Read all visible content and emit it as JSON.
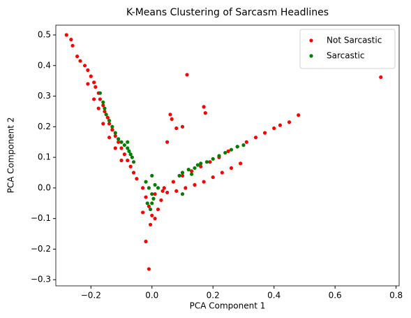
{
  "chart_data": {
    "type": "scatter",
    "title": "K-Means Clustering of Sarcasm Headlines",
    "x_label": "PCA Component 1",
    "y_label": "PCA Component 2",
    "xlim": [
      -0.315,
      0.81
    ],
    "ylim": [
      -0.32,
      0.532
    ],
    "xticks": [
      {
        "value": -0.2,
        "label": "−0.2"
      },
      {
        "value": 0,
        "label": "0.0"
      },
      {
        "value": 0.2,
        "label": "0.2"
      },
      {
        "value": 0.4,
        "label": "0.4"
      },
      {
        "value": 0.6,
        "label": "0.6"
      },
      {
        "value": 0.8,
        "label": "0.8"
      }
    ],
    "yticks": [
      {
        "value": -0.3,
        "label": "−0.3"
      },
      {
        "value": -0.2,
        "label": "−0.2"
      },
      {
        "value": -0.1,
        "label": "−0.1"
      },
      {
        "value": 0,
        "label": "0.0"
      },
      {
        "value": 0.1,
        "label": "0.1"
      },
      {
        "value": 0.2,
        "label": "0.2"
      },
      {
        "value": 0.3,
        "label": "0.3"
      },
      {
        "value": 0.4,
        "label": "0.4"
      },
      {
        "value": 0.5,
        "label": "0.5"
      }
    ],
    "legend": "upper right",
    "series": [
      {
        "name": "Not Sarcastic",
        "color": "#ff0000",
        "x": [
          -0.28,
          -0.265,
          -0.26,
          -0.245,
          -0.235,
          -0.22,
          -0.21,
          -0.2,
          -0.19,
          -0.185,
          -0.175,
          -0.17,
          -0.16,
          -0.155,
          -0.145,
          -0.14,
          -0.13,
          -0.12,
          -0.11,
          -0.1,
          -0.09,
          -0.08,
          -0.07,
          -0.06,
          -0.05,
          -0.175,
          -0.16,
          -0.14,
          -0.12,
          -0.1,
          -0.19,
          -0.21,
          -0.03,
          -0.02,
          -0.01,
          0,
          -0.005,
          0.01,
          0.02,
          0.03,
          -0.03,
          0.01,
          -0.02,
          -0.01,
          0.035,
          0.04,
          0.07,
          0.1,
          0.13,
          0.16,
          0.19,
          0.22,
          0.25,
          0.28,
          0.31,
          0.34,
          0.37,
          0.4,
          0.42,
          0.45,
          0.48,
          0.05,
          0.08,
          0.11,
          0.14,
          0.17,
          0.2,
          0.23,
          0.26,
          0.29,
          0.75,
          0.115,
          0.17,
          0.06,
          0.065,
          0.1,
          0.08,
          0.175,
          0.05
        ],
        "y": [
          0.5,
          0.485,
          0.465,
          0.43,
          0.415,
          0.4,
          0.385,
          0.365,
          0.345,
          0.33,
          0.31,
          0.29,
          0.27,
          0.25,
          0.23,
          0.21,
          0.19,
          0.17,
          0.15,
          0.13,
          0.11,
          0.09,
          0.07,
          0.05,
          0.03,
          0.26,
          0.21,
          0.165,
          0.13,
          0.09,
          0.29,
          0.34,
          0,
          -0.03,
          -0.06,
          -0.09,
          -0.12,
          -0.1,
          -0.07,
          -0.04,
          -0.08,
          -0.02,
          -0.175,
          -0.265,
          -0.01,
          0,
          0.02,
          0.04,
          0.055,
          0.07,
          0.085,
          0.1,
          0.12,
          0.135,
          0.15,
          0.165,
          0.18,
          0.195,
          0.205,
          0.215,
          0.238,
          -0.015,
          -0.01,
          0,
          0.01,
          0.02,
          0.035,
          0.05,
          0.065,
          0.08,
          0.362,
          0.37,
          0.265,
          0.24,
          0.225,
          0.2,
          0.195,
          0.245,
          0.15
        ]
      },
      {
        "name": "Sarcastic",
        "color": "#008000",
        "x": [
          -0.17,
          -0.16,
          -0.155,
          -0.15,
          -0.14,
          -0.13,
          -0.12,
          -0.11,
          -0.1,
          -0.09,
          -0.08,
          -0.075,
          -0.07,
          -0.065,
          -0.08,
          -0.06,
          -0.02,
          -0.01,
          0,
          0,
          -0.005,
          0.01,
          0.02,
          0.005,
          -0.015,
          0,
          0.1,
          0.12,
          0.14,
          0.15,
          0.16,
          0.18,
          0.2,
          0.22,
          0.24,
          0.26,
          0.28,
          0.3,
          0.09,
          0.1,
          0.13
        ],
        "y": [
          0.31,
          0.28,
          0.26,
          0.24,
          0.22,
          0.2,
          0.18,
          0.16,
          0.15,
          0.14,
          0.13,
          0.12,
          0.11,
          0.1,
          0.15,
          0.085,
          0.02,
          0,
          -0.02,
          -0.05,
          -0.07,
          0.01,
          0,
          -0.035,
          -0.05,
          0.04,
          0.05,
          0.06,
          0.065,
          0.075,
          0.08,
          0.085,
          0.095,
          0.105,
          0.115,
          0.125,
          0.135,
          0.14,
          0.04,
          -0.02,
          0.045
        ]
      }
    ]
  }
}
